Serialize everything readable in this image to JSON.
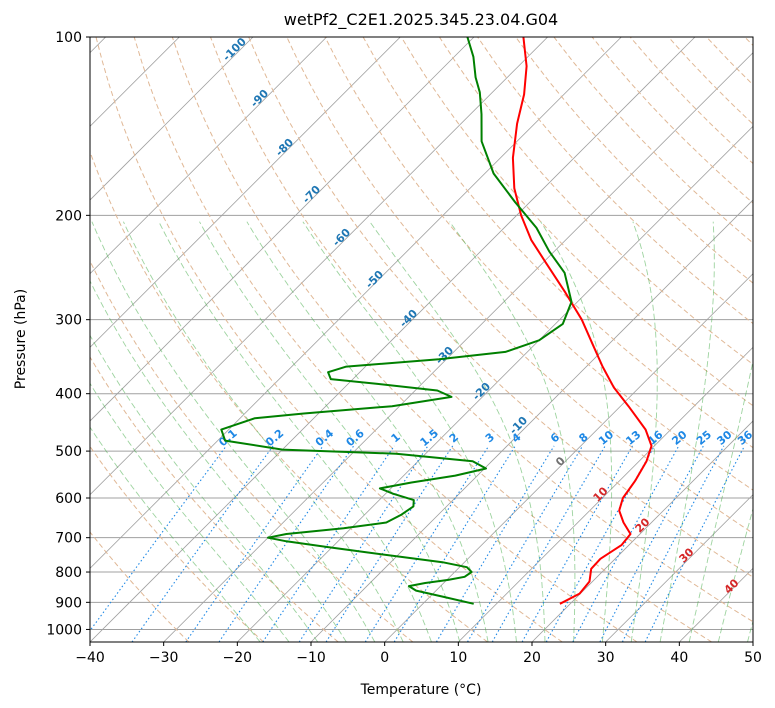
{
  "chart_data": {
    "type": "line",
    "chart_kind": "skew-t",
    "title": "wetPf2_C2E1.2025.345.23.04.G04",
    "xlabel": "Temperature (°C)",
    "ylabel": "Pressure (hPa)",
    "xlim": [
      -40,
      50
    ],
    "ylim": [
      1050,
      100
    ],
    "y_scale": "log",
    "x_ticks": [
      -40,
      -30,
      -20,
      -10,
      0,
      10,
      20,
      30,
      40,
      50
    ],
    "x_tick_labels": [
      "−40",
      "−30",
      "−20",
      "−10",
      "0",
      "10",
      "20",
      "30",
      "40",
      "50"
    ],
    "y_ticks": [
      100,
      200,
      300,
      400,
      500,
      600,
      700,
      800,
      900,
      1000
    ],
    "y_tick_labels": [
      "100",
      "200",
      "300",
      "400",
      "500",
      "600",
      "700",
      "800",
      "900",
      "1000"
    ],
    "grid": true,
    "series": [
      {
        "role": "temperature",
        "color": "#ff0000",
        "points": [
          {
            "p": 905,
            "t": 18.6
          },
          {
            "p": 870,
            "t": 19.9
          },
          {
            "p": 830,
            "t": 19.6
          },
          {
            "p": 790,
            "t": 18.1
          },
          {
            "p": 760,
            "t": 18.0
          },
          {
            "p": 720,
            "t": 19.0
          },
          {
            "p": 690,
            "t": 18.7
          },
          {
            "p": 660,
            "t": 16.2
          },
          {
            "p": 630,
            "t": 14.0
          },
          {
            "p": 600,
            "t": 12.8
          },
          {
            "p": 560,
            "t": 12.1
          },
          {
            "p": 520,
            "t": 11.0
          },
          {
            "p": 490,
            "t": 9.6
          },
          {
            "p": 460,
            "t": 6.6
          },
          {
            "p": 420,
            "t": 1.1
          },
          {
            "p": 390,
            "t": -3.5
          },
          {
            "p": 360,
            "t": -7.8
          },
          {
            "p": 330,
            "t": -12.2
          },
          {
            "p": 300,
            "t": -17.0
          },
          {
            "p": 270,
            "t": -22.9
          },
          {
            "p": 240,
            "t": -29.7
          },
          {
            "p": 220,
            "t": -34.7
          },
          {
            "p": 200,
            "t": -39.4
          },
          {
            "p": 180,
            "t": -44.0
          },
          {
            "p": 160,
            "t": -48.3
          },
          {
            "p": 140,
            "t": -52.4
          },
          {
            "p": 125,
            "t": -55.4
          },
          {
            "p": 112,
            "t": -58.9
          },
          {
            "p": 100,
            "t": -63.3
          }
        ]
      },
      {
        "role": "dewpoint",
        "color": "#008000",
        "points": [
          {
            "p": 905,
            "t": 6.9
          },
          {
            "p": 880,
            "t": 1.7
          },
          {
            "p": 860,
            "t": -2.7
          },
          {
            "p": 845,
            "t": -4.3
          },
          {
            "p": 835,
            "t": -2.5
          },
          {
            "p": 825,
            "t": 0.2
          },
          {
            "p": 815,
            "t": 2.0
          },
          {
            "p": 800,
            "t": 2.3
          },
          {
            "p": 785,
            "t": 1.0
          },
          {
            "p": 770,
            "t": -3.0
          },
          {
            "p": 755,
            "t": -9.0
          },
          {
            "p": 740,
            "t": -15.0
          },
          {
            "p": 725,
            "t": -21.0
          },
          {
            "p": 710,
            "t": -27.0
          },
          {
            "p": 700,
            "t": -30.0
          },
          {
            "p": 690,
            "t": -28.0
          },
          {
            "p": 675,
            "t": -21.0
          },
          {
            "p": 660,
            "t": -16.0
          },
          {
            "p": 640,
            "t": -15.0
          },
          {
            "p": 620,
            "t": -14.5
          },
          {
            "p": 605,
            "t": -15.3
          },
          {
            "p": 590,
            "t": -19.0
          },
          {
            "p": 578,
            "t": -21.5
          },
          {
            "p": 565,
            "t": -18.0
          },
          {
            "p": 550,
            "t": -13.0
          },
          {
            "p": 535,
            "t": -9.8
          },
          {
            "p": 520,
            "t": -12.6
          },
          {
            "p": 505,
            "t": -24.0
          },
          {
            "p": 497,
            "t": -40.0
          },
          {
            "p": 480,
            "t": -49.0
          },
          {
            "p": 460,
            "t": -51.0
          },
          {
            "p": 440,
            "t": -48.0
          },
          {
            "p": 432,
            "t": -42.0
          },
          {
            "p": 420,
            "t": -31.0
          },
          {
            "p": 405,
            "t": -24.2
          },
          {
            "p": 395,
            "t": -27.0
          },
          {
            "p": 385,
            "t": -36.0
          },
          {
            "p": 378,
            "t": -43.0
          },
          {
            "p": 368,
            "t": -44.3
          },
          {
            "p": 360,
            "t": -42.6
          },
          {
            "p": 350,
            "t": -31.0
          },
          {
            "p": 340,
            "t": -23.0
          },
          {
            "p": 325,
            "t": -20.0
          },
          {
            "p": 305,
            "t": -19.0
          },
          {
            "p": 280,
            "t": -20.8
          },
          {
            "p": 250,
            "t": -25.7
          },
          {
            "p": 230,
            "t": -30.7
          },
          {
            "p": 210,
            "t": -35.6
          },
          {
            "p": 190,
            "t": -42.0
          },
          {
            "p": 170,
            "t": -48.8
          },
          {
            "p": 150,
            "t": -54.8
          },
          {
            "p": 135,
            "t": -58.5
          },
          {
            "p": 124,
            "t": -61.7
          },
          {
            "p": 117,
            "t": -64.3
          },
          {
            "p": 108,
            "t": -67.4
          },
          {
            "p": 100,
            "t": -70.9
          }
        ]
      }
    ],
    "reference_lines": {
      "isotherm_labels": [
        "-100",
        "-90",
        "-80",
        "-70",
        "-60",
        "-50",
        "-40",
        "-30",
        "-20",
        "-10"
      ],
      "mixing_ratio_labels": [
        "0.1",
        "0.2",
        "0.4",
        "0.6",
        "1",
        "1.5",
        "2",
        "3",
        "4",
        "6",
        "8",
        "10",
        "13",
        "16",
        "20",
        "25",
        "30",
        "36"
      ],
      "moist_adiabat_labels": [
        "0",
        "10",
        "20",
        "30",
        "40"
      ],
      "colors": {
        "isotherm": "#a0a0a0",
        "isotherm_label": "#1f77b4",
        "dry_adiabat": "#e0b896",
        "moist_adiabat": "#4caf50",
        "mixing_ratio": "#1e88e5",
        "moist_label": "#d62728"
      }
    }
  }
}
